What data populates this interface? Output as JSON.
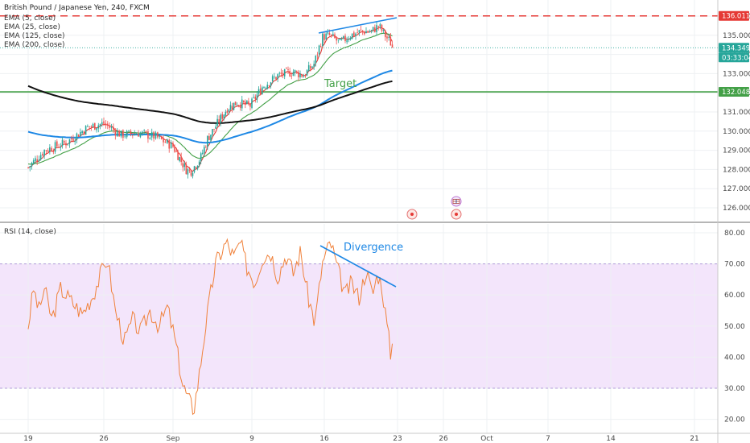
{
  "header": {
    "symbol_title": "British Pound / Japanese Yen, 240, FXCM",
    "indicators": [
      "EMA (5, close)",
      "EMA (25, close)",
      "EMA (125, close)",
      "EMA (200, close)"
    ],
    "rsi_label": "RSI (14, close)"
  },
  "colors": {
    "bull": "#26a69a",
    "bear": "#ef5350",
    "ema5": "#e53935",
    "ema25": "#43a047",
    "ema125": "#1e88e5",
    "ema200": "#111111",
    "rsi_line": "#f0823c",
    "rsi_band": "#f3e5fb",
    "resistance": "#e53935",
    "support": "#43a047",
    "annotation_blue": "#1e88e5",
    "annotation_green": "#43a047",
    "current_price_tag": "#26a69a",
    "countdown_tag": "#26a69a"
  },
  "annotations": {
    "target_label": "Target",
    "divergence_label": "Divergence"
  },
  "price_tags": {
    "resistance": "136.011",
    "current": "134.349",
    "countdown": "03:33:04",
    "support": "132.048"
  },
  "chart_data": [
    {
      "type": "line",
      "panel": "price",
      "ylim": [
        125.8,
        136.2
      ],
      "y_ticks": [
        "136.000",
        "135.000",
        "134.000",
        "133.000",
        "132.000",
        "131.000",
        "130.000",
        "129.000",
        "128.000",
        "127.000",
        "126.000"
      ],
      "x_ticks": [
        "19",
        "26",
        "Sep",
        "9",
        "16",
        "23",
        "26",
        "Oct",
        "7",
        "14",
        "21"
      ],
      "candles_sampled": [
        {
          "date": "Aug 19",
          "close": 128.4
        },
        {
          "date": "Aug 23",
          "close": 129.4
        },
        {
          "date": "Aug 26",
          "close": 130.0
        },
        {
          "date": "Aug 29",
          "close": 129.7
        },
        {
          "date": "Sep 2",
          "close": 128.5
        },
        {
          "date": "Sep 3",
          "close": 127.8
        },
        {
          "date": "Sep 5",
          "close": 130.2
        },
        {
          "date": "Sep 9",
          "close": 131.4
        },
        {
          "date": "Sep 11",
          "close": 133.0
        },
        {
          "date": "Sep 13",
          "close": 133.1
        },
        {
          "date": "Sep 16",
          "close": 134.8
        },
        {
          "date": "Sep 19",
          "close": 135.0
        },
        {
          "date": "Sep 20",
          "close": 135.4
        },
        {
          "date": "Sep 23",
          "close": 134.35
        }
      ],
      "resistance_level": 136.011,
      "support_level": 132.048,
      "last_price": 134.349
    },
    {
      "type": "line",
      "panel": "rsi",
      "ylim": [
        18,
        82
      ],
      "y_ticks": [
        "80.00",
        "70.00",
        "60.00",
        "50.00",
        "40.00",
        "30.00",
        "20.00"
      ],
      "overbought": 70,
      "oversold": 30,
      "rsi_sampled": [
        {
          "date": "Aug 19",
          "value": 55
        },
        {
          "date": "Aug 26",
          "value": 68
        },
        {
          "date": "Sep 2",
          "value": 30
        },
        {
          "date": "Sep 3",
          "value": 23
        },
        {
          "date": "Sep 6",
          "value": 76
        },
        {
          "date": "Sep 16",
          "value": 76
        },
        {
          "date": "Sep 20",
          "value": 60
        },
        {
          "date": "Sep 23",
          "value": 46
        }
      ]
    }
  ]
}
